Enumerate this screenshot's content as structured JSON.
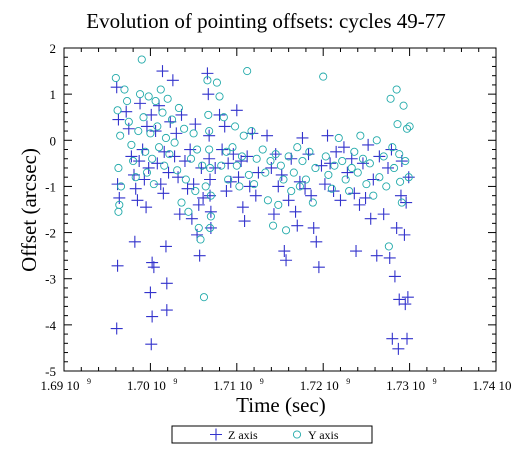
{
  "chart_data": {
    "type": "scatter",
    "title": "Evolution of pointing offsets: cycles 49-77",
    "xlabel": "Time (sec)",
    "ylabel": "Offset (arcsec)",
    "xlim": [
      1690000000.0,
      1740000000.0
    ],
    "ylim": [
      -5,
      2
    ],
    "x_ticks": [
      {
        "value": 1690000000.0,
        "mantissa": "1.69 10",
        "exp": "9"
      },
      {
        "value": 1700000000.0,
        "mantissa": "1.70 10",
        "exp": "9"
      },
      {
        "value": 1710000000.0,
        "mantissa": "1.71 10",
        "exp": "9"
      },
      {
        "value": 1720000000.0,
        "mantissa": "1.72 10",
        "exp": "9"
      },
      {
        "value": 1730000000.0,
        "mantissa": "1.73 10",
        "exp": "9"
      },
      {
        "value": 1740000000.0,
        "mantissa": "1.74 10",
        "exp": "9"
      }
    ],
    "y_ticks": [
      {
        "value": 2,
        "label": "2"
      },
      {
        "value": 1,
        "label": "1"
      },
      {
        "value": 0,
        "label": "0"
      },
      {
        "value": -1,
        "label": "-1"
      },
      {
        "value": -2,
        "label": "-2"
      },
      {
        "value": -3,
        "label": "-3"
      },
      {
        "value": -4,
        "label": "-4"
      },
      {
        "value": -5,
        "label": "-5"
      }
    ],
    "legend_position": "bottom-center",
    "series": [
      {
        "name": "Z axis",
        "marker": "plus",
        "color": "#3333cc",
        "points": [
          [
            1696100000.0,
            1.15
          ],
          [
            1696300000.0,
            0.45
          ],
          [
            1696200000.0,
            -0.95
          ],
          [
            1696400000.0,
            -1.25
          ],
          [
            1696200000.0,
            -2.72
          ],
          [
            1696100000.0,
            -4.08
          ],
          [
            1697200000.0,
            0.62
          ],
          [
            1697500000.0,
            0.25
          ],
          [
            1697800000.0,
            -0.35
          ],
          [
            1698100000.0,
            -0.75
          ],
          [
            1698300000.0,
            -1.05
          ],
          [
            1698500000.0,
            -1.3
          ],
          [
            1698700000.0,
            -0.45
          ],
          [
            1698800000.0,
            0.8
          ],
          [
            1698200000.0,
            -2.2
          ],
          [
            1699100000.0,
            -0.2
          ],
          [
            1699300000.0,
            -0.85
          ],
          [
            1699500000.0,
            -1.45
          ],
          [
            1699600000.0,
            0.3
          ],
          [
            1699800000.0,
            -0.6
          ],
          [
            1700100000.0,
            0.55
          ],
          [
            1700200000.0,
            -2.65
          ],
          [
            1700000000.0,
            -3.3
          ],
          [
            1700200000.0,
            -3.82
          ],
          [
            1700100000.0,
            -4.42
          ],
          [
            1700400000.0,
            -2.75
          ],
          [
            1700600000.0,
            0.2
          ],
          [
            1700800000.0,
            -0.5
          ],
          [
            1701000000.0,
            0.75
          ],
          [
            1701200000.0,
            -0.95
          ],
          [
            1701400000.0,
            1.5
          ],
          [
            1701500000.0,
            -1.15
          ],
          [
            1701600000.0,
            -0.25
          ],
          [
            1701800000.0,
            -2.3
          ],
          [
            1701900000.0,
            -3.1
          ],
          [
            1701900000.0,
            -3.68
          ],
          [
            1702100000.0,
            -0.7
          ],
          [
            1702300000.0,
            0.4
          ],
          [
            1702600000.0,
            1.3
          ],
          [
            1702800000.0,
            -0.35
          ],
          [
            1703000000.0,
            0.15
          ],
          [
            1703200000.0,
            -0.8
          ],
          [
            1703400000.0,
            -1.6
          ],
          [
            1703600000.0,
            0.55
          ],
          [
            1704000000.0,
            -0.45
          ],
          [
            1704300000.0,
            -1.05
          ],
          [
            1704600000.0,
            -0.2
          ],
          [
            1704800000.0,
            -1.7
          ],
          [
            1705000000.0,
            -0.95
          ],
          [
            1705200000.0,
            0.35
          ],
          [
            1705400000.0,
            -2.05
          ],
          [
            1705600000.0,
            -1.4
          ],
          [
            1705700000.0,
            -2.5
          ],
          [
            1705900000.0,
            -0.6
          ],
          [
            1706100000.0,
            -1.25
          ],
          [
            1706600000.0,
            1.45
          ],
          [
            1706700000.0,
            1.0
          ],
          [
            1706800000.0,
            0.1
          ],
          [
            1706800000.0,
            -0.4
          ],
          [
            1706900000.0,
            -0.85
          ],
          [
            1706900000.0,
            -1.2
          ],
          [
            1707000000.0,
            -1.55
          ],
          [
            1707000000.0,
            -1.9
          ],
          [
            1707500000.0,
            -0.6
          ],
          [
            1708000000.0,
            0.55
          ],
          [
            1708300000.0,
            -0.2
          ],
          [
            1708600000.0,
            0.3
          ],
          [
            1708800000.0,
            -1.1
          ],
          [
            1709000000.0,
            -0.5
          ],
          [
            1709300000.0,
            -0.9
          ],
          [
            1709600000.0,
            -0.3
          ],
          [
            1710000000.0,
            0.65
          ],
          [
            1710200000.0,
            -0.8
          ],
          [
            1710500000.0,
            -0.45
          ],
          [
            1710700000.0,
            -1.45
          ],
          [
            1710900000.0,
            -1.75
          ],
          [
            1711200000.0,
            -0.35
          ],
          [
            1711500000.0,
            -1.0
          ],
          [
            1711800000.0,
            0.15
          ],
          [
            1712200000.0,
            -1.2
          ],
          [
            1712500000.0,
            -0.7
          ],
          [
            1713500000.0,
            0.1
          ],
          [
            1714000000.0,
            -0.6
          ],
          [
            1714300000.0,
            -1.6
          ],
          [
            1714500000.0,
            -0.3
          ],
          [
            1714800000.0,
            -1.0
          ],
          [
            1715200000.0,
            -0.75
          ],
          [
            1715500000.0,
            -2.4
          ],
          [
            1715700000.0,
            -2.6
          ],
          [
            1716000000.0,
            -1.3
          ],
          [
            1716300000.0,
            -0.4
          ],
          [
            1716800000.0,
            -1.55
          ],
          [
            1717000000.0,
            -1.85
          ],
          [
            1717300000.0,
            -0.9
          ],
          [
            1717600000.0,
            0.05
          ],
          [
            1717900000.0,
            -1.05
          ],
          [
            1718300000.0,
            -0.3
          ],
          [
            1718600000.0,
            -1.2
          ],
          [
            1718900000.0,
            -1.9
          ],
          [
            1719200000.0,
            -2.2
          ],
          [
            1719500000.0,
            -2.75
          ],
          [
            1719800000.0,
            -0.55
          ],
          [
            1720200000.0,
            -0.95
          ],
          [
            1720500000.0,
            0.1
          ],
          [
            1720800000.0,
            -0.5
          ],
          [
            1721200000.0,
            -1.1
          ],
          [
            1721500000.0,
            -0.25
          ],
          [
            1722000000.0,
            -1.3
          ],
          [
            1722400000.0,
            -0.15
          ],
          [
            1722800000.0,
            -0.7
          ],
          [
            1723300000.0,
            -0.4
          ],
          [
            1723600000.0,
            -1.15
          ],
          [
            1723800000.0,
            -2.4
          ],
          [
            1724200000.0,
            -1.4
          ],
          [
            1724600000.0,
            -0.5
          ],
          [
            1724900000.0,
            -1.25
          ],
          [
            1725200000.0,
            -0.1
          ],
          [
            1725500000.0,
            -1.7
          ],
          [
            1725800000.0,
            -0.85
          ],
          [
            1726200000.0,
            -2.5
          ],
          [
            1726500000.0,
            -0.35
          ],
          [
            1727000000.0,
            -1.6
          ],
          [
            1727500000.0,
            -0.6
          ],
          [
            1727700000.0,
            -2.55
          ],
          [
            1727900000.0,
            -0.2
          ],
          [
            1728000000.0,
            -4.3
          ],
          [
            1728300000.0,
            -2.95
          ],
          [
            1728500000.0,
            -1.9
          ],
          [
            1728700000.0,
            -4.52
          ],
          [
            1728800000.0,
            -3.45
          ],
          [
            1729000000.0,
            -1.2
          ],
          [
            1729100000.0,
            -0.45
          ],
          [
            1729400000.0,
            -2.05
          ],
          [
            1729500000.0,
            -3.55
          ],
          [
            1729600000.0,
            -1.35
          ],
          [
            1729700000.0,
            -4.3
          ],
          [
            1729800000.0,
            -3.4
          ],
          [
            1729900000.0,
            -0.8
          ]
        ]
      },
      {
        "name": "Y axis",
        "marker": "circle",
        "color": "#22aaaa",
        "points": [
          [
            1696000000.0,
            1.35
          ],
          [
            1696200000.0,
            0.65
          ],
          [
            1696500000.0,
            0.1
          ],
          [
            1696300000.0,
            -0.6
          ],
          [
            1696600000.0,
            -1.0
          ],
          [
            1696400000.0,
            -1.4
          ],
          [
            1696300000.0,
            -1.55
          ],
          [
            1697000000.0,
            1.1
          ],
          [
            1697300000.0,
            0.85
          ],
          [
            1697500000.0,
            0.4
          ],
          [
            1697800000.0,
            -0.1
          ],
          [
            1698000000.0,
            -0.45
          ],
          [
            1698300000.0,
            -0.8
          ],
          [
            1698600000.0,
            0.2
          ],
          [
            1698800000.0,
            1.0
          ],
          [
            1699000000.0,
            1.75
          ],
          [
            1699200000.0,
            0.5
          ],
          [
            1699400000.0,
            -0.25
          ],
          [
            1699600000.0,
            -0.7
          ],
          [
            1699800000.0,
            0.95
          ],
          [
            1700000000.0,
            0.15
          ],
          [
            1700200000.0,
            -0.4
          ],
          [
            1700400000.0,
            -0.95
          ],
          [
            1700600000.0,
            0.85
          ],
          [
            1700800000.0,
            0.3
          ],
          [
            1701000000.0,
            -0.15
          ],
          [
            1701200000.0,
            1.1
          ],
          [
            1701400000.0,
            0.6
          ],
          [
            1701600000.0,
            -0.55
          ],
          [
            1701800000.0,
            0.05
          ],
          [
            1702000000.0,
            0.9
          ],
          [
            1702200000.0,
            -0.3
          ],
          [
            1702500000.0,
            0.45
          ],
          [
            1702800000.0,
            -0.05
          ],
          [
            1703100000.0,
            -0.65
          ],
          [
            1703300000.0,
            0.7
          ],
          [
            1703600000.0,
            -1.35
          ],
          [
            1703900000.0,
            0.25
          ],
          [
            1704100000.0,
            -0.85
          ],
          [
            1704400000.0,
            -1.55
          ],
          [
            1704700000.0,
            -0.4
          ],
          [
            1705000000.0,
            0.15
          ],
          [
            1705200000.0,
            -1.1
          ],
          [
            1705400000.0,
            -0.2
          ],
          [
            1705600000.0,
            -1.9
          ],
          [
            1705800000.0,
            -2.15
          ],
          [
            1706000000.0,
            -0.55
          ],
          [
            1706200000.0,
            -3.4
          ],
          [
            1706400000.0,
            -1.0
          ],
          [
            1706600000.0,
            1.3
          ],
          [
            1706700000.0,
            0.55
          ],
          [
            1706800000.0,
            0.2
          ],
          [
            1706800000.0,
            -0.2
          ],
          [
            1706900000.0,
            -0.6
          ],
          [
            1707000000.0,
            -1.2
          ],
          [
            1707000000.0,
            -1.65
          ],
          [
            1706900000.0,
            -1.9
          ],
          [
            1707700000.0,
            1.25
          ],
          [
            1708000000.0,
            0.95
          ],
          [
            1708200000.0,
            -0.55
          ],
          [
            1708500000.0,
            0.5
          ],
          [
            1708800000.0,
            -0.25
          ],
          [
            1709000000.0,
            -0.85
          ],
          [
            1709500000.0,
            -0.15
          ],
          [
            1709800000.0,
            0.3
          ],
          [
            1710000000.0,
            -0.55
          ],
          [
            1710300000.0,
            -1.0
          ],
          [
            1710600000.0,
            -0.35
          ],
          [
            1710800000.0,
            0.1
          ],
          [
            1711200000.0,
            1.5
          ],
          [
            1711400000.0,
            -0.75
          ],
          [
            1711700000.0,
            0.2
          ],
          [
            1712000000.0,
            -0.95
          ],
          [
            1712300000.0,
            -0.4
          ],
          [
            1713000000.0,
            -0.2
          ],
          [
            1713300000.0,
            -0.7
          ],
          [
            1713600000.0,
            -1.3
          ],
          [
            1713900000.0,
            -0.45
          ],
          [
            1714200000.0,
            -1.85
          ],
          [
            1714500000.0,
            -0.3
          ],
          [
            1714800000.0,
            -1.4
          ],
          [
            1715100000.0,
            -0.55
          ],
          [
            1715400000.0,
            -0.85
          ],
          [
            1715700000.0,
            -1.95
          ],
          [
            1716000000.0,
            -0.35
          ],
          [
            1716300000.0,
            -1.1
          ],
          [
            1716600000.0,
            -0.7
          ],
          [
            1717000000.0,
            -0.15
          ],
          [
            1717300000.0,
            -1.0
          ],
          [
            1717600000.0,
            -0.45
          ],
          [
            1718000000.0,
            -0.85
          ],
          [
            1718400000.0,
            -0.25
          ],
          [
            1718800000.0,
            -1.35
          ],
          [
            1719100000.0,
            -0.6
          ],
          [
            1720000000.0,
            1.38
          ],
          [
            1720300000.0,
            -0.35
          ],
          [
            1720600000.0,
            -0.75
          ],
          [
            1721000000.0,
            -1.05
          ],
          [
            1721300000.0,
            -0.55
          ],
          [
            1721800000.0,
            0.05
          ],
          [
            1722200000.0,
            -0.45
          ],
          [
            1722600000.0,
            -0.85
          ],
          [
            1723000000.0,
            -1.1
          ],
          [
            1723300000.0,
            -0.6
          ],
          [
            1723600000.0,
            -0.25
          ],
          [
            1724000000.0,
            -0.7
          ],
          [
            1724300000.0,
            0.1
          ],
          [
            1724600000.0,
            -0.4
          ],
          [
            1725000000.0,
            -0.95
          ],
          [
            1725400000.0,
            -0.5
          ],
          [
            1725800000.0,
            -1.2
          ],
          [
            1726200000.0,
            0.0
          ],
          [
            1726500000.0,
            -0.8
          ],
          [
            1727000000.0,
            -0.35
          ],
          [
            1727300000.0,
            -1.0
          ],
          [
            1727600000.0,
            -2.3
          ],
          [
            1727800000.0,
            0.9
          ],
          [
            1728000000.0,
            -0.15
          ],
          [
            1728200000.0,
            -0.6
          ],
          [
            1728500000.0,
            1.1
          ],
          [
            1728600000.0,
            0.35
          ],
          [
            1728800000.0,
            -0.3
          ],
          [
            1728900000.0,
            -0.9
          ],
          [
            1729100000.0,
            -1.35
          ],
          [
            1729300000.0,
            0.75
          ],
          [
            1729500000.0,
            -0.45
          ],
          [
            1729700000.0,
            0.25
          ],
          [
            1729900000.0,
            -0.8
          ],
          [
            1730000000.0,
            0.3
          ]
        ]
      }
    ]
  }
}
